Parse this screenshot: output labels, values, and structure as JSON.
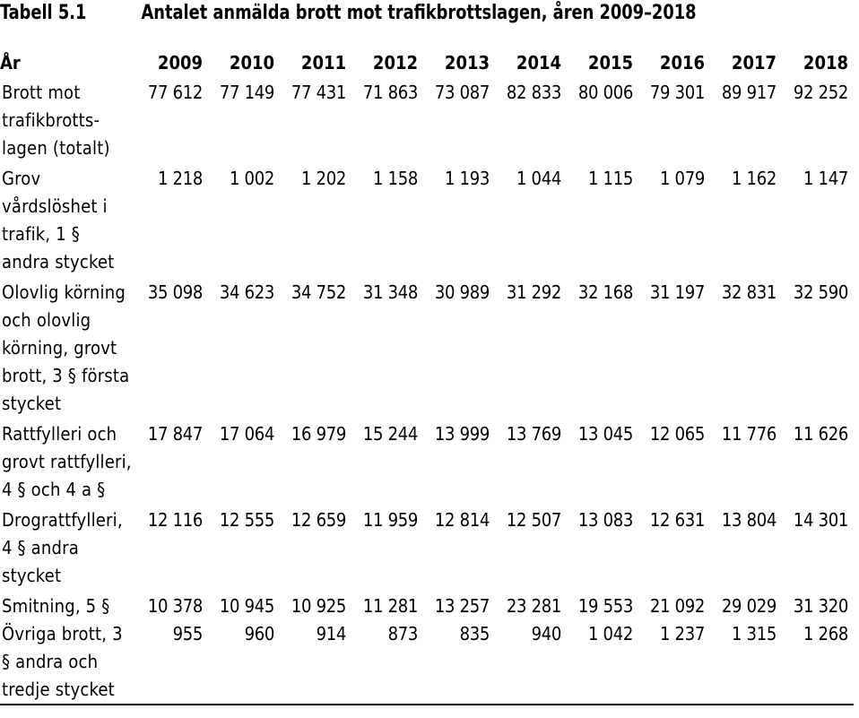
{
  "table": {
    "label": "Tabell 5.1",
    "title": "Antalet anmälda brott mot trafikbrottslagen, åren 2009–2018",
    "row_header": "År",
    "years": [
      "2009",
      "2010",
      "2011",
      "2012",
      "2013",
      "2014",
      "2015",
      "2016",
      "2017",
      "2018"
    ],
    "rows": [
      {
        "label": "Brott mot trafikbrotts-lagen (totalt)",
        "values": [
          "77 612",
          "77 149",
          "77 431",
          "71 863",
          "73 087",
          "82 833",
          "80 006",
          "79 301",
          "89 917",
          "92 252"
        ]
      },
      {
        "label": "Grov vårdslöshet i trafik, 1 § andra stycket",
        "values": [
          "1 218",
          "1 002",
          "1 202",
          "1 158",
          "1 193",
          "1 044",
          "1 115",
          "1 079",
          "1 162",
          "1 147"
        ]
      },
      {
        "label": "Olovlig körning och olovlig körning, grovt brott, 3 § första stycket",
        "values": [
          "35 098",
          "34 623",
          "34 752",
          "31 348",
          "30 989",
          "31 292",
          "32 168",
          "31 197",
          "32 831",
          "32 590"
        ]
      },
      {
        "label": "Rattfylleri och grovt rattfylleri, 4 § och 4 a §",
        "values": [
          "17 847",
          "17 064",
          "16 979",
          "15 244",
          "13 999",
          "13 769",
          "13 045",
          "12 065",
          "11 776",
          "11 626"
        ]
      },
      {
        "label": "Drograttfylleri, 4 § andra stycket",
        "values": [
          "12 116",
          "12 555",
          "12 659",
          "11 959",
          "12 814",
          "12 507",
          "13 083",
          "12 631",
          "13 804",
          "14 301"
        ]
      },
      {
        "label": "Smitning, 5 §",
        "values": [
          "10 378",
          "10 945",
          "10 925",
          "11 281",
          "13 257",
          "23 281",
          "19 553",
          "21 092",
          "29 029",
          "31 320"
        ]
      },
      {
        "label": "Övriga brott, 3 § andra och tredje stycket",
        "values": [
          "955",
          "960",
          "914",
          "873",
          "835",
          "940",
          "1 042",
          "1 237",
          "1 315",
          "1 268"
        ]
      }
    ]
  }
}
